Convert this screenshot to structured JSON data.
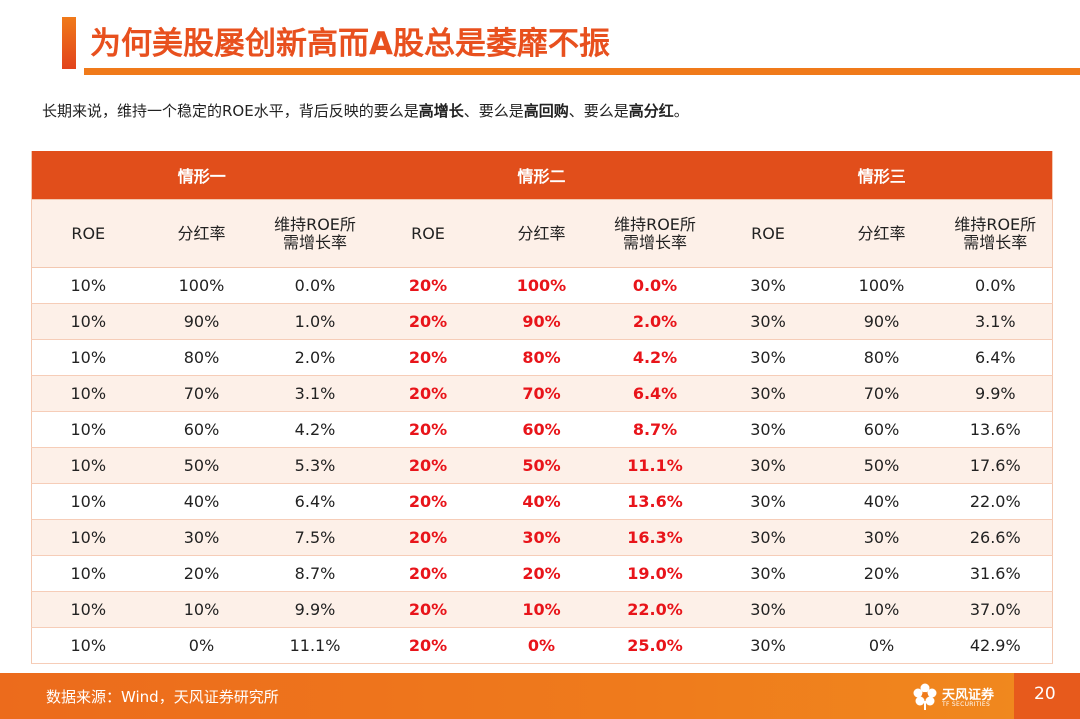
{
  "title": "为何美股屡创新高而A股总是萎靡不振",
  "subtitle": {
    "prefix": "长期来说，维持一个稳定的ROE水平，背后反映的要么是",
    "b1": "高增长",
    "mid1": "、要么是",
    "b2": "高回购",
    "mid2": "、要么是",
    "b3": "高分红",
    "suffix": "。"
  },
  "groups": [
    "情形一",
    "情形二",
    "情形三"
  ],
  "columns": [
    {
      "l1": "ROE",
      "l2": ""
    },
    {
      "l1": "分红率",
      "l2": ""
    },
    {
      "l1": "维持ROE所",
      "l2": "需增长率"
    }
  ],
  "rows": [
    [
      "10%",
      "100%",
      "0.0%",
      "20%",
      "100%",
      "0.0%",
      "30%",
      "100%",
      "0.0%"
    ],
    [
      "10%",
      "90%",
      "1.0%",
      "20%",
      "90%",
      "2.0%",
      "30%",
      "90%",
      "3.1%"
    ],
    [
      "10%",
      "80%",
      "2.0%",
      "20%",
      "80%",
      "4.2%",
      "30%",
      "80%",
      "6.4%"
    ],
    [
      "10%",
      "70%",
      "3.1%",
      "20%",
      "70%",
      "6.4%",
      "30%",
      "70%",
      "9.9%"
    ],
    [
      "10%",
      "60%",
      "4.2%",
      "20%",
      "60%",
      "8.7%",
      "30%",
      "60%",
      "13.6%"
    ],
    [
      "10%",
      "50%",
      "5.3%",
      "20%",
      "50%",
      "11.1%",
      "30%",
      "50%",
      "17.6%"
    ],
    [
      "10%",
      "40%",
      "6.4%",
      "20%",
      "40%",
      "13.6%",
      "30%",
      "40%",
      "22.0%"
    ],
    [
      "10%",
      "30%",
      "7.5%",
      "20%",
      "30%",
      "16.3%",
      "30%",
      "30%",
      "26.6%"
    ],
    [
      "10%",
      "20%",
      "8.7%",
      "20%",
      "20%",
      "19.0%",
      "30%",
      "20%",
      "31.6%"
    ],
    [
      "10%",
      "10%",
      "9.9%",
      "20%",
      "10%",
      "22.0%",
      "30%",
      "10%",
      "37.0%"
    ],
    [
      "10%",
      "0%",
      "11.1%",
      "20%",
      "0%",
      "25.0%",
      "30%",
      "0%",
      "42.9%"
    ]
  ],
  "highlight_color": "#e8141a",
  "accent_color": "#e14e1b",
  "footer": {
    "source": "数据来源：Wind，天风证券研究所",
    "logo_name": "天风证券",
    "logo_eng": "TF SECURITIES",
    "page": "20"
  }
}
